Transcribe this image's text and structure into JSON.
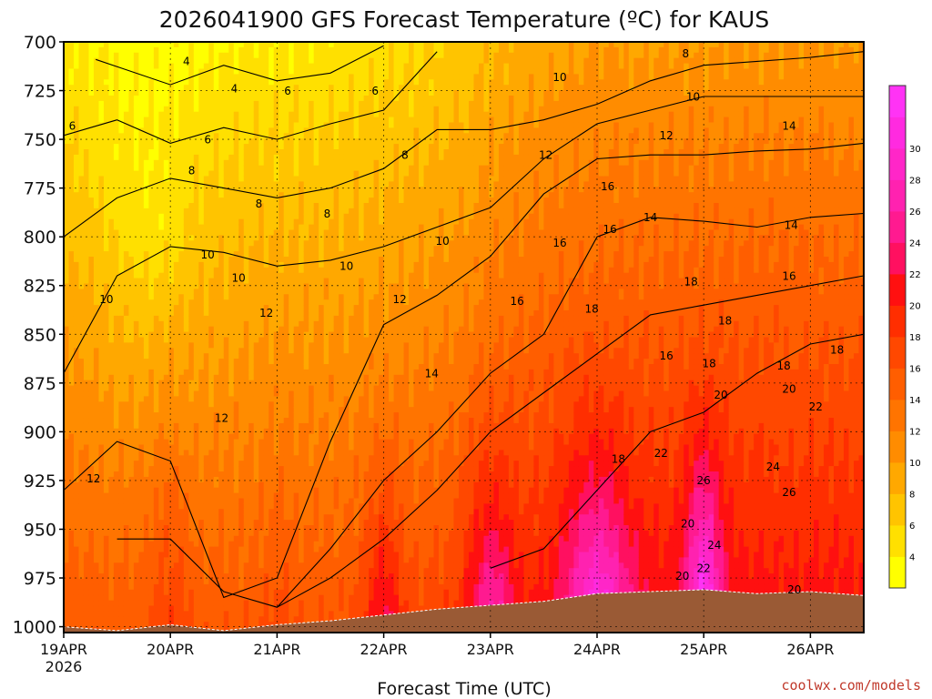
{
  "chart_data": {
    "type": "heatmap",
    "title": "2026041900 GFS Forecast Temperature (ºC) for KAUS",
    "xlabel": "Forecast Time (UTC)",
    "ylabel": "",
    "x_tick_labels": [
      "19APR",
      "20APR",
      "21APR",
      "22APR",
      "23APR",
      "24APR",
      "25APR",
      "26APR"
    ],
    "x_year_label": "2026",
    "x_range_days": [
      0,
      7.5
    ],
    "y_tick_labels": [
      "700",
      "725",
      "750",
      "775",
      "800",
      "825",
      "850",
      "875",
      "900",
      "925",
      "950",
      "975",
      "1000"
    ],
    "y_range": [
      700,
      1003
    ],
    "y_reversed": true,
    "grid": true,
    "colorbar": {
      "levels": [
        2,
        4,
        6,
        8,
        10,
        12,
        14,
        16,
        18,
        20,
        22,
        24,
        26,
        28,
        30,
        32
      ],
      "labels": [
        "4",
        "6",
        "8",
        "10",
        "12",
        "14",
        "16",
        "18",
        "20",
        "22",
        "24",
        "26",
        "28",
        "30"
      ],
      "colors": [
        "#ffff00",
        "#ffe000",
        "#ffc400",
        "#ffa800",
        "#ff8c00",
        "#ff7400",
        "#ff5e00",
        "#ff4800",
        "#ff2e00",
        "#ff1010",
        "#ff1060",
        "#ff1a90",
        "#ff22b0",
        "#ff26c8",
        "#ff2ae0",
        "#ff33f5"
      ]
    },
    "series": [
      {
        "name": "surface",
        "x": [
          0,
          0.5,
          1,
          1.5,
          2,
          2.5,
          3,
          3.5,
          4,
          4.5,
          5,
          5.5,
          6,
          6.5,
          7,
          7.5
        ],
        "values": [
          1000,
          1002,
          999,
          1002,
          999,
          997,
          994,
          991,
          989,
          987,
          983,
          982,
          981,
          983,
          982,
          984
        ]
      },
      {
        "name": "contour-4C",
        "x": [
          0.3,
          1,
          1.5,
          2,
          2.5,
          3
        ],
        "values": [
          709,
          722,
          712,
          720,
          716,
          702
        ]
      },
      {
        "name": "contour-6C",
        "x": [
          0,
          0.5,
          1,
          1.5,
          2,
          2.5,
          3,
          3.5
        ],
        "values": [
          748,
          740,
          752,
          744,
          750,
          742,
          735,
          705
        ]
      },
      {
        "name": "contour-8C",
        "x": [
          0,
          0.5,
          1,
          1.5,
          2,
          2.5,
          3,
          3.5,
          4,
          4.5,
          5,
          5.5,
          6,
          6.5,
          7,
          7.5
        ],
        "values": [
          800,
          780,
          770,
          775,
          780,
          775,
          765,
          745,
          745,
          740,
          732,
          720,
          712,
          710,
          708,
          705
        ]
      },
      {
        "name": "contour-10C",
        "x": [
          0,
          0.5,
          1,
          1.5,
          2,
          2.5,
          3,
          3.5,
          4,
          4.5,
          5,
          5.5,
          6,
          6.5,
          7,
          7.5
        ],
        "values": [
          870,
          820,
          805,
          808,
          815,
          812,
          805,
          795,
          785,
          760,
          742,
          735,
          728,
          728,
          728,
          728
        ]
      },
      {
        "name": "contour-12C",
        "x": [
          0,
          0.5,
          1,
          1.5,
          2,
          2.5,
          3,
          3.5,
          4,
          4.5,
          5,
          5.5,
          6,
          6.5,
          7,
          7.5
        ],
        "values": [
          930,
          905,
          915,
          985,
          975,
          905,
          845,
          830,
          810,
          778,
          760,
          758,
          758,
          756,
          755,
          752
        ]
      },
      {
        "name": "contour-14C",
        "x": [
          0.5,
          1,
          1.5,
          2,
          2.5,
          3,
          3.5,
          4,
          4.5,
          5,
          5.5,
          6,
          6.5,
          7,
          7.5
        ],
        "values": [
          955,
          955,
          982,
          990,
          960,
          925,
          900,
          870,
          850,
          800,
          790,
          792,
          795,
          790,
          788
        ]
      },
      {
        "name": "contour-16C",
        "x": [
          2,
          2.5,
          3,
          3.5,
          4,
          4.5,
          5,
          5.5,
          6,
          6.5,
          7,
          7.5
        ],
        "values": [
          990,
          975,
          955,
          930,
          900,
          880,
          860,
          840,
          835,
          830,
          825,
          820
        ]
      },
      {
        "name": "contour-18C",
        "x": [
          4,
          4.5,
          5,
          5.5,
          6,
          6.5,
          7,
          7.5
        ],
        "values": [
          970,
          960,
          930,
          900,
          890,
          870,
          855,
          850
        ]
      }
    ],
    "annotations": [
      "4",
      "4",
      "6",
      "6",
      "6",
      "6",
      "8",
      "8",
      "8",
      "8",
      "8",
      "10",
      "10",
      "10",
      "10",
      "10",
      "10",
      "10",
      "12",
      "12",
      "12",
      "12",
      "12",
      "12",
      "14",
      "14",
      "14",
      "14",
      "16",
      "16",
      "16",
      "16",
      "16",
      "16",
      "18",
      "18",
      "18",
      "18",
      "18",
      "18",
      "18",
      "20",
      "20",
      "20",
      "20",
      "20",
      "22",
      "22",
      "22",
      "24",
      "24",
      "26",
      "26"
    ]
  },
  "credit": "coolwx.com/models"
}
